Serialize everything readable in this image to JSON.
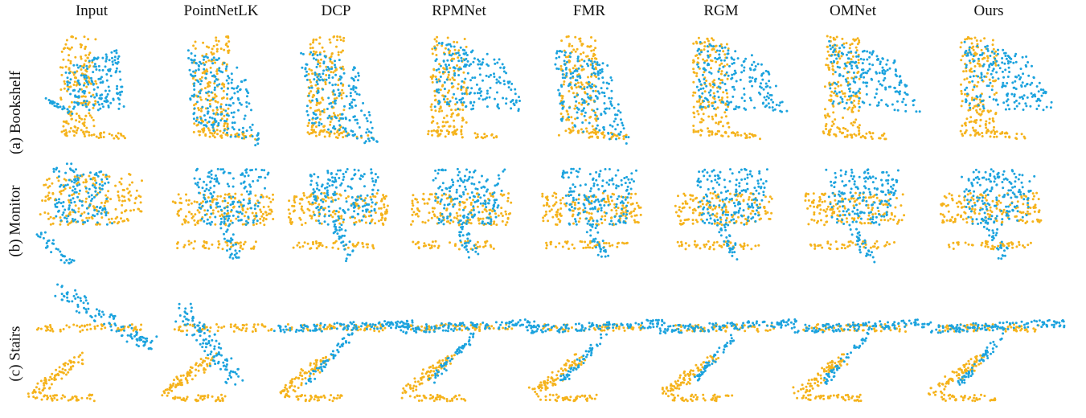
{
  "figure": {
    "columns": [
      "Input",
      "PointNetLK",
      "DCP",
      "RPMNet",
      "FMR",
      "RGM",
      "OMNet",
      "Ours"
    ],
    "rows": [
      "(a) Bookshelf",
      "(b) Monitor",
      "(c) Stairs"
    ],
    "colors": {
      "source": "#F5B31C",
      "target": "#1CA3DE"
    }
  }
}
